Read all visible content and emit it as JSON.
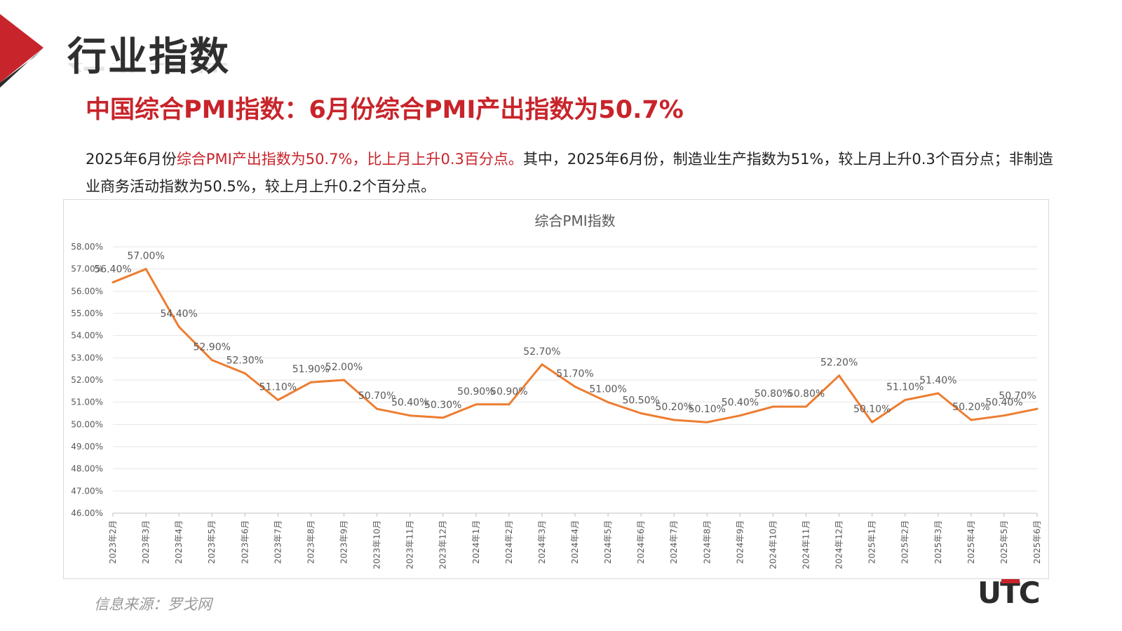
{
  "header": {
    "section_title": "行业指数",
    "headline": "中国综合PMI指数：6月份综合PMI产出指数为50.7%"
  },
  "paragraph": {
    "p1": "2025年6月份",
    "p2_highlight": "综合PMI产出指数为50.7%，比上月上升0.3百分点。",
    "p3": "其中，2025年6月份，制造业生产指数为51%，较上月上升0.3个百分点；非制造业商务活动指数为50.5%，较上月上升0.2个百分点。"
  },
  "footer": {
    "source": "信息来源：罗戈网",
    "logo_text": "UTC"
  },
  "colors": {
    "accent_red": "#c8242b",
    "line": "#ed7d31",
    "grid": "#d9d9d9"
  },
  "chart_data": {
    "type": "line",
    "title": "综合PMI指数",
    "xlabel": "",
    "ylabel": "",
    "ylim": [
      46,
      58
    ],
    "y_ticks": [
      "58.00%",
      "57.00%",
      "56.00%",
      "55.00%",
      "54.00%",
      "53.00%",
      "52.00%",
      "51.00%",
      "50.00%",
      "49.00%",
      "48.00%",
      "47.00%",
      "46.00%"
    ],
    "grid": true,
    "legend": "none",
    "categories": [
      "2023年2月",
      "2023年3月",
      "2023年4月",
      "2023年5月",
      "2023年6月",
      "2023年7月",
      "2023年8月",
      "2023年9月",
      "2023年10月",
      "2023年11月",
      "2023年12月",
      "2024年1月",
      "2024年2月",
      "2024年3月",
      "2024年4月",
      "2024年5月",
      "2024年6月",
      "2024年7月",
      "2024年8月",
      "2024年9月",
      "2024年10月",
      "2024年11月",
      "2024年12月",
      "2025年1月",
      "2025年2月",
      "2025年3月",
      "2025年4月",
      "2025年5月",
      "2025年6月"
    ],
    "values": [
      56.4,
      57.0,
      54.4,
      52.9,
      52.3,
      51.1,
      51.9,
      52.0,
      50.7,
      50.4,
      50.3,
      50.9,
      50.9,
      52.7,
      51.7,
      51.0,
      50.5,
      50.2,
      50.1,
      50.4,
      50.8,
      50.8,
      52.2,
      50.1,
      51.1,
      51.4,
      50.2,
      50.4,
      50.7
    ],
    "data_labels": [
      "56.40%",
      "57.00%",
      "54.40%",
      "52.90%",
      "52.30%",
      "51.10%",
      "51.90%",
      "52.00%",
      "50.70%",
      "50.40%",
      "50.30%",
      "50.90%",
      "50.90%",
      "52.70%",
      "51.70%",
      "51.00%",
      "50.50%",
      "50.20%",
      "50.10%",
      "50.40%",
      "50.80%",
      "50.80%",
      "52.20%",
      "50.10%",
      "51.10%",
      "51.40%",
      "50.20%",
      "50.40%",
      "50.70%"
    ]
  }
}
